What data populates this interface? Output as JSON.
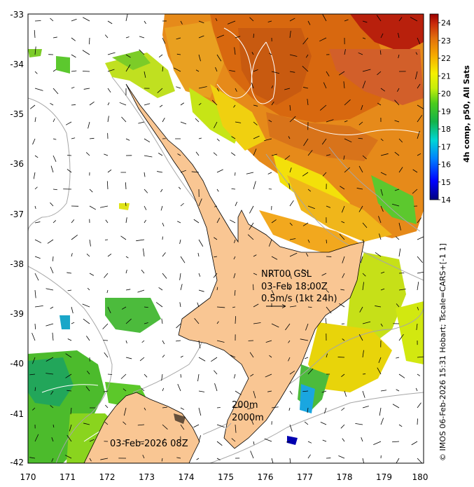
{
  "map": {
    "lon_range": [
      170,
      180
    ],
    "lat_range": [
      -42,
      -33
    ],
    "x_ticks": [
      "170",
      "171",
      "172",
      "173",
      "174",
      "175",
      "176",
      "177",
      "178",
      "179",
      "180"
    ],
    "y_ticks": [
      "-33",
      "-34",
      "-35",
      "-36",
      "-37",
      "-38",
      "-39",
      "-40",
      "-41",
      "-42"
    ],
    "colors": {
      "land": "#f9c693",
      "coast": "#000000",
      "contour": "#a6a6a6",
      "sst_contour": "#ffffff"
    }
  },
  "annotations": {
    "product_lines": [
      "NRT00 GSL",
      "03-Feb 18:00Z",
      "0.5m/s (1kt 24h)"
    ],
    "depth_200": "200m",
    "depth_2000": "2000m",
    "date_label": "03-Feb-2026 08Z",
    "credit": "© IMOS 06-Feb-2026 15:31 Hobart; Tscale=CARS+[-1 1]"
  },
  "colorbar": {
    "label": "4h comp, p50, All Sats",
    "min": 14,
    "max": 24.5,
    "ticks": [
      "14",
      "15",
      "16",
      "17",
      "18",
      "19",
      "20",
      "21",
      "22",
      "23",
      "24"
    ]
  }
}
